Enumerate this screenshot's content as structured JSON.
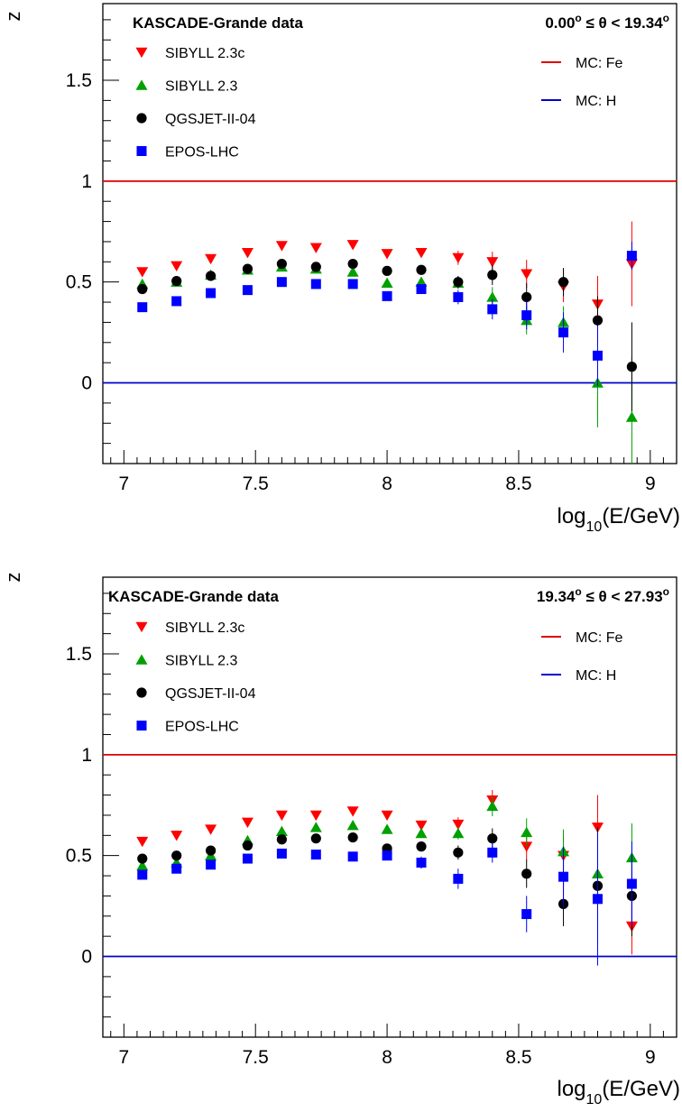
{
  "chart_data": [
    {
      "type": "scatter",
      "title": "KASCADE-Grande data",
      "angle_range": {
        "low": "0.00",
        "high": "19.34",
        "unit": "o"
      },
      "ylabel": "z",
      "xlabel": {
        "pre": "log",
        "sub": "10",
        "post": "(E/GeV)"
      },
      "xlim": [
        6.92,
        9.1
      ],
      "ylim": [
        -0.4,
        1.88
      ],
      "x_ticks": [
        7,
        7.5,
        8,
        8.5,
        9
      ],
      "x_tick_labels": [
        "7",
        "7.5",
        "8",
        "8.5",
        "9"
      ],
      "y_ticks": [
        0,
        0.5,
        1,
        1.5
      ],
      "y_tick_labels": [
        "0",
        "0.5",
        "1",
        "1.5"
      ],
      "x": [
        7.07,
        7.2,
        7.33,
        7.47,
        7.6,
        7.73,
        7.87,
        8.0,
        8.13,
        8.27,
        8.4,
        8.53,
        8.67,
        8.8,
        8.93
      ],
      "series": [
        {
          "name": "SIBYLL 2.3c",
          "marker": "triangle-down",
          "color": "#ff0000",
          "values": [
            0.55,
            0.58,
            0.615,
            0.645,
            0.68,
            0.67,
            0.685,
            0.64,
            0.645,
            0.62,
            0.6,
            0.54,
            0.48,
            0.39,
            0.59
          ],
          "errors": [
            0.02,
            0.02,
            0.02,
            0.02,
            0.02,
            0.02,
            0.02,
            0.02,
            0.02,
            0.035,
            0.05,
            0.07,
            0.08,
            0.14,
            0.21
          ]
        },
        {
          "name": "SIBYLL 2.3",
          "marker": "triangle-up",
          "color": "#00a000",
          "values": [
            0.49,
            0.5,
            0.535,
            0.56,
            0.575,
            0.565,
            0.55,
            0.495,
            0.5,
            0.495,
            0.425,
            0.31,
            0.3,
            0.0,
            -0.17
          ],
          "errors": [
            0.02,
            0.02,
            0.02,
            0.02,
            0.02,
            0.02,
            0.02,
            0.02,
            0.02,
            0.03,
            0.05,
            0.07,
            0.08,
            0.22,
            0.3
          ]
        },
        {
          "name": "QGSJET-II-04",
          "marker": "circle",
          "color": "#000000",
          "values": [
            0.465,
            0.505,
            0.53,
            0.565,
            0.59,
            0.575,
            0.59,
            0.555,
            0.56,
            0.5,
            0.535,
            0.425,
            0.5,
            0.31,
            0.08
          ],
          "errors": [
            0.02,
            0.02,
            0.02,
            0.02,
            0.02,
            0.02,
            0.02,
            0.02,
            0.02,
            0.03,
            0.05,
            0.07,
            0.07,
            0.12,
            0.22
          ]
        },
        {
          "name": "EPOS-LHC",
          "marker": "square",
          "color": "#0000ff",
          "values": [
            0.375,
            0.405,
            0.445,
            0.46,
            0.5,
            0.49,
            0.49,
            0.43,
            0.465,
            0.425,
            0.365,
            0.335,
            0.25,
            0.135,
            0.63
          ],
          "errors": [
            0.02,
            0.02,
            0.02,
            0.02,
            0.02,
            0.02,
            0.02,
            0.02,
            0.02,
            0.035,
            0.05,
            0.07,
            0.1,
            0.15,
            0.07
          ]
        }
      ],
      "reference_lines": [
        {
          "name": "MC: Fe",
          "y": 1,
          "color": "#dd0000"
        },
        {
          "name": "MC: H",
          "y": 0,
          "color": "#0000cc"
        }
      ]
    },
    {
      "type": "scatter",
      "title": "KASCADE-Grande data",
      "angle_range": {
        "low": "19.34",
        "high": "27.93",
        "unit": "o"
      },
      "ylabel": "z",
      "xlabel": {
        "pre": "log",
        "sub": "10",
        "post": "(E/GeV)"
      },
      "xlim": [
        6.92,
        9.1
      ],
      "ylim": [
        -0.4,
        1.88
      ],
      "x_ticks": [
        7,
        7.5,
        8,
        8.5,
        9
      ],
      "x_tick_labels": [
        "7",
        "7.5",
        "8",
        "8.5",
        "9"
      ],
      "y_ticks": [
        0,
        0.5,
        1,
        1.5
      ],
      "y_tick_labels": [
        "0",
        "0.5",
        "1",
        "1.5"
      ],
      "x": [
        7.07,
        7.2,
        7.33,
        7.47,
        7.6,
        7.73,
        7.87,
        8.0,
        8.13,
        8.27,
        8.4,
        8.53,
        8.67,
        8.8,
        8.93
      ],
      "series": [
        {
          "name": "SIBYLL 2.3c",
          "marker": "triangle-down",
          "color": "#ff0000",
          "values": [
            0.57,
            0.6,
            0.63,
            0.665,
            0.7,
            0.7,
            0.72,
            0.7,
            0.65,
            0.655,
            0.775,
            0.545,
            0.5,
            0.64,
            0.15
          ],
          "errors": [
            0.02,
            0.02,
            0.02,
            0.02,
            0.02,
            0.02,
            0.02,
            0.02,
            0.02,
            0.035,
            0.05,
            0.07,
            0.1,
            0.16,
            0.14
          ]
        },
        {
          "name": "SIBYLL 2.3",
          "marker": "triangle-up",
          "color": "#00a000",
          "values": [
            0.45,
            0.465,
            0.5,
            0.575,
            0.62,
            0.64,
            0.65,
            0.63,
            0.61,
            0.61,
            0.745,
            0.615,
            0.52,
            0.41,
            0.49
          ],
          "errors": [
            0.02,
            0.02,
            0.02,
            0.02,
            0.02,
            0.02,
            0.02,
            0.02,
            0.02,
            0.03,
            0.05,
            0.07,
            0.11,
            0.22,
            0.17
          ]
        },
        {
          "name": "QGSJET-II-04",
          "marker": "circle",
          "color": "#000000",
          "values": [
            0.485,
            0.5,
            0.525,
            0.55,
            0.58,
            0.585,
            0.59,
            0.535,
            0.545,
            0.515,
            0.585,
            0.41,
            0.26,
            0.35,
            0.3
          ],
          "errors": [
            0.02,
            0.02,
            0.02,
            0.02,
            0.02,
            0.02,
            0.02,
            0.02,
            0.02,
            0.035,
            0.05,
            0.07,
            0.11,
            0.29,
            0.2
          ]
        },
        {
          "name": "EPOS-LHC",
          "marker": "square",
          "color": "#0000ff",
          "values": [
            0.405,
            0.435,
            0.455,
            0.485,
            0.51,
            0.505,
            0.495,
            0.5,
            0.465,
            0.385,
            0.515,
            0.21,
            0.395,
            0.285,
            0.36
          ],
          "errors": [
            0.02,
            0.02,
            0.02,
            0.02,
            0.02,
            0.02,
            0.02,
            0.02,
            0.03,
            0.05,
            0.05,
            0.09,
            0.15,
            0.33,
            0.21
          ]
        }
      ],
      "reference_lines": [
        {
          "name": "MC: Fe",
          "y": 1,
          "color": "#dd0000"
        },
        {
          "name": "MC: H",
          "y": 0,
          "color": "#0000cc"
        }
      ]
    }
  ]
}
